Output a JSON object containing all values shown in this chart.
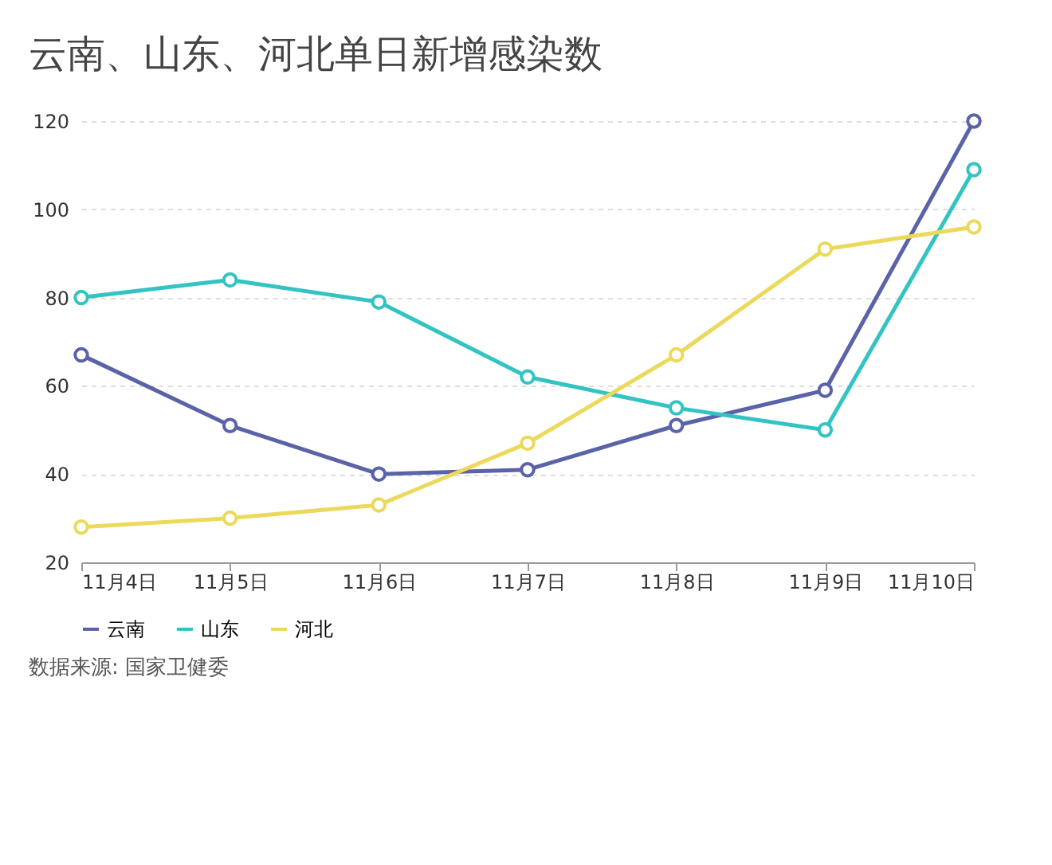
{
  "chart_data": {
    "type": "line",
    "title": "云南、山东、河北单日新增感染数",
    "categories": [
      "11月4日",
      "11月5日",
      "11月6日",
      "11月7日",
      "11月8日",
      "11月9日",
      "11月10日"
    ],
    "series": [
      {
        "name": "云南",
        "color": "#5a62a8",
        "values": [
          67,
          51,
          40,
          41,
          51,
          59,
          120
        ]
      },
      {
        "name": "山东",
        "color": "#33c3c3",
        "values": [
          80,
          84,
          79,
          62,
          55,
          50,
          109
        ]
      },
      {
        "name": "河北",
        "color": "#ecd95c",
        "values": [
          28,
          30,
          33,
          47,
          67,
          91,
          96
        ]
      }
    ],
    "ylim": [
      20,
      120
    ],
    "yticks": [
      20,
      40,
      60,
      80,
      100,
      120
    ],
    "grid": "y",
    "legend": "bottom",
    "marker": "circle",
    "line_style": "solid",
    "annotations": [
      "数据来源: 国家卫健委"
    ]
  }
}
